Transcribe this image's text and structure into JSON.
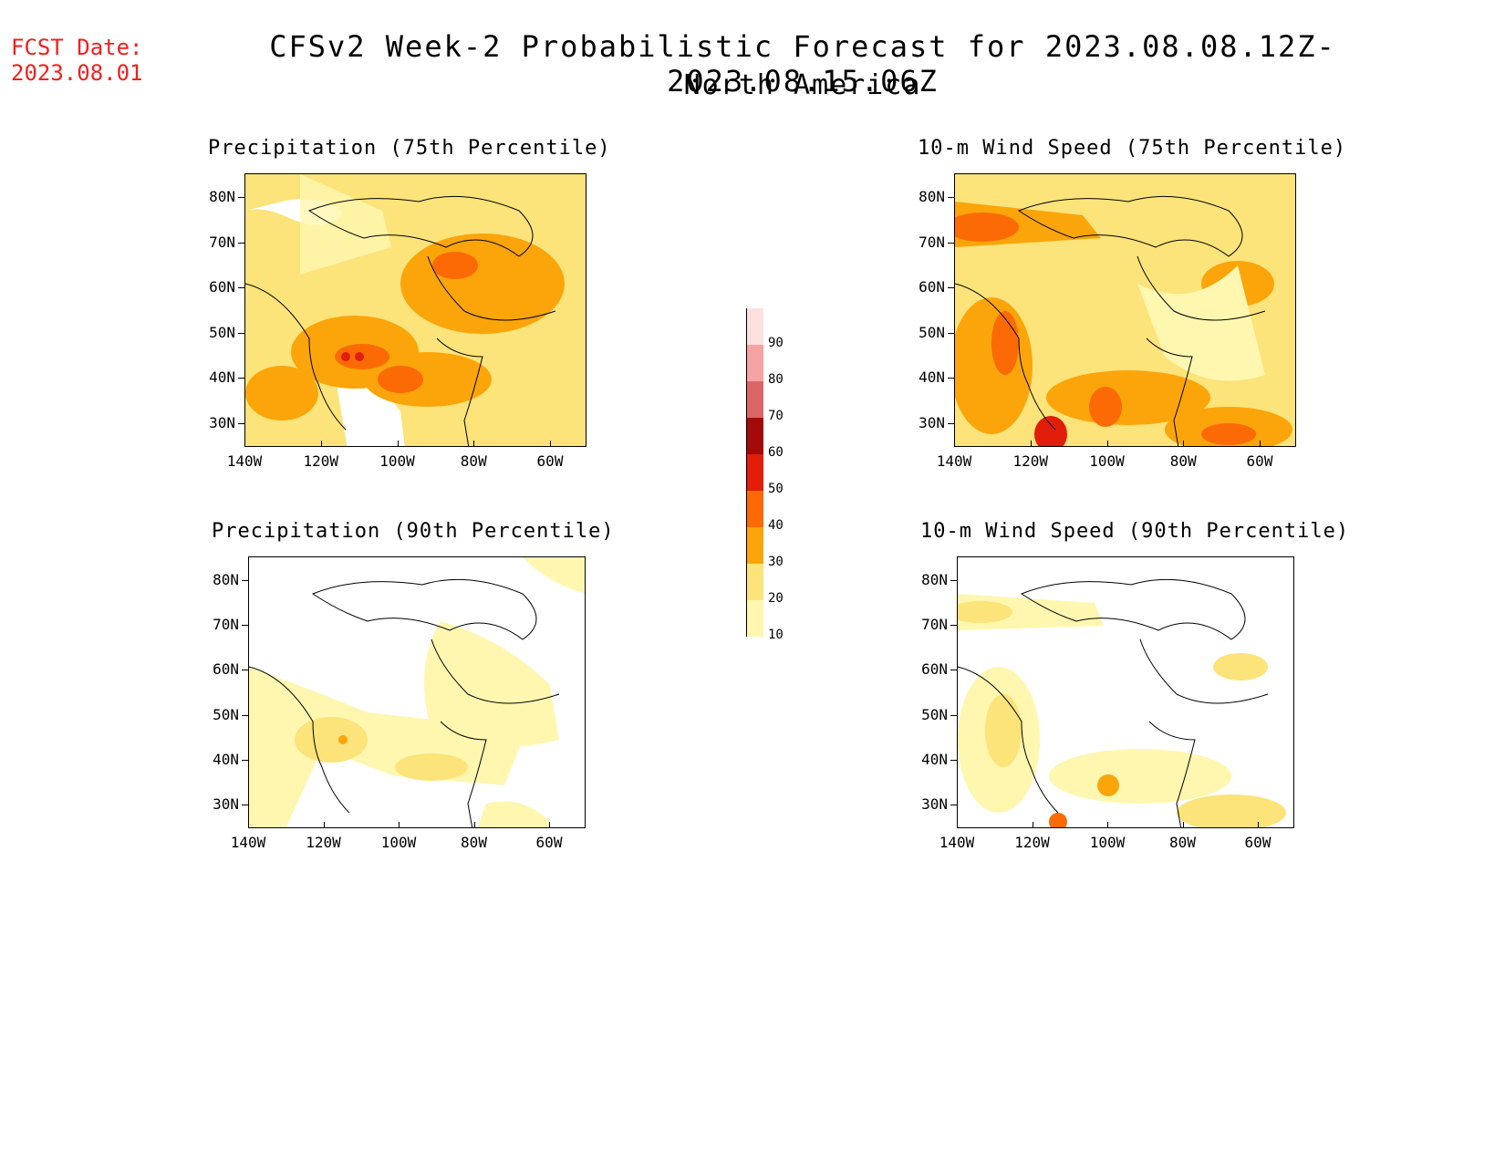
{
  "header": {
    "fcst_label": "FCST Date:",
    "fcst_date": "2023.08.01",
    "title": "CFSv2 Week-2 Probabilistic Forecast for 2023.08.08.12Z-2023.08.15.06Z",
    "subtitle": "North America"
  },
  "axes": {
    "lat_labels": [
      "80N",
      "70N",
      "60N",
      "50N",
      "40N",
      "30N"
    ],
    "lon_labels": [
      "140W",
      "120W",
      "100W",
      "80W",
      "60W"
    ]
  },
  "panels": [
    {
      "title": "Precipitation (75th Percentile)"
    },
    {
      "title": "10-m Wind Speed (75th Percentile)"
    },
    {
      "title": "Precipitation (90th Percentile)"
    },
    {
      "title": "10-m Wind Speed (90th Percentile)"
    }
  ],
  "colorbar": {
    "levels": [
      "10",
      "20",
      "30",
      "40",
      "50",
      "60",
      "70",
      "80",
      "90"
    ],
    "colors": [
      "#fff7b0",
      "#fce37a",
      "#fba50a",
      "#fb6a04",
      "#e21d0a",
      "#a40909",
      "#dc6666",
      "#f5a3a3",
      "#fde0e0"
    ]
  }
}
